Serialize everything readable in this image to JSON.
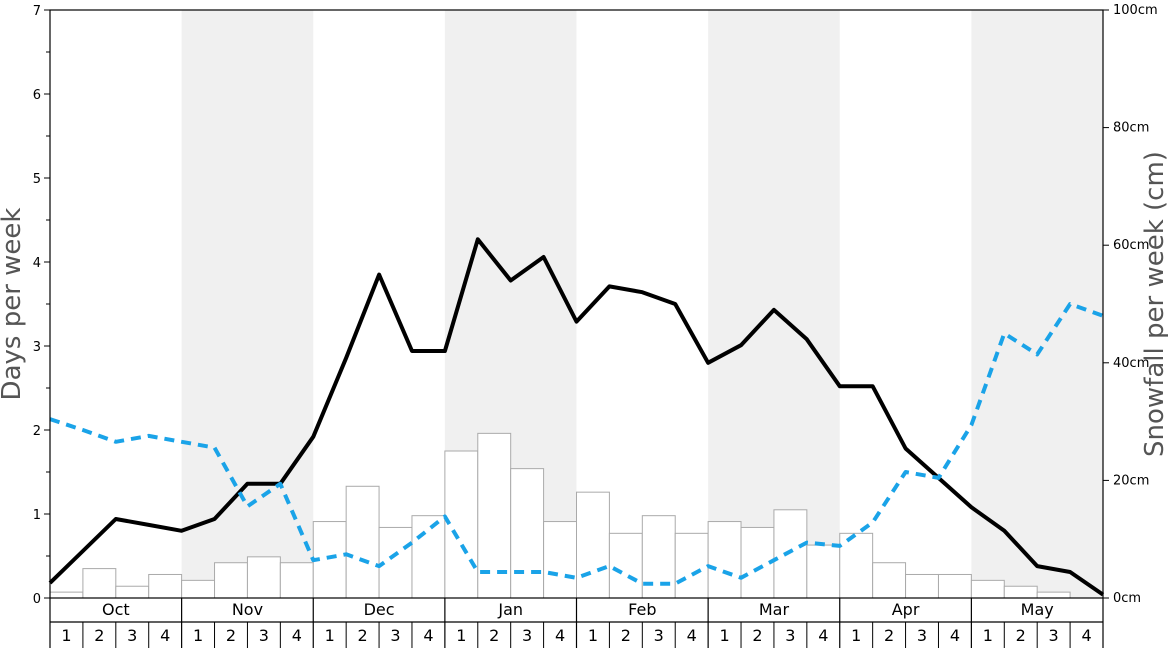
{
  "chart_data": {
    "type": "bar+line",
    "title": "",
    "ylabel_left": "Days per week",
    "ylabel_right": "Snowfall per week (cm)",
    "ylim_left": [
      0,
      7
    ],
    "ylim_right": [
      0,
      100
    ],
    "left_ticks": [
      "0",
      "1",
      "2",
      "3",
      "4",
      "5",
      "6",
      "7"
    ],
    "right_ticks": [
      "0cm",
      "20cm",
      "40cm",
      "60cm",
      "80cm",
      "100cm"
    ],
    "months": [
      "Oct",
      "Nov",
      "Dec",
      "Jan",
      "Feb",
      "Mar",
      "Apr",
      "May"
    ],
    "weeks": [
      "1",
      "2",
      "3",
      "4"
    ],
    "shaded_months": [
      1,
      3,
      5,
      7
    ],
    "colors": {
      "bars_fill": "#ffffff",
      "bars_stroke": "#aaaaaa",
      "days_line": "#000000",
      "dashed_line": "#1aa3e8",
      "shade": "#f0f0f0",
      "axis_title": "#555555"
    },
    "series": [
      {
        "kind": "bar",
        "axis": "right",
        "values": [
          1,
          5,
          2,
          4,
          3,
          6,
          7,
          6,
          13,
          19,
          12,
          14,
          25,
          28,
          22,
          13,
          18,
          11,
          14,
          11,
          13,
          12,
          15,
          9,
          11,
          6,
          4,
          4,
          3,
          2,
          1,
          0
        ]
      },
      {
        "kind": "line",
        "axis": "left",
        "style": "solid",
        "values": [
          0.18,
          0.56,
          0.94,
          0.87,
          0.8,
          0.94,
          1.36,
          1.36,
          1.92,
          2.86,
          3.85,
          2.94,
          2.94,
          4.27,
          3.78,
          4.06,
          3.29,
          3.71,
          3.64,
          3.5,
          2.8,
          3.01,
          3.43,
          3.08,
          2.52,
          2.52,
          1.78,
          1.43,
          1.08,
          0.8,
          0.38,
          0.31,
          0.04
        ]
      },
      {
        "kind": "line",
        "axis": "left",
        "style": "dashed",
        "values": [
          2.13,
          2.0,
          1.86,
          1.93,
          1.86,
          1.79,
          1.09,
          1.36,
          0.45,
          0.52,
          0.38,
          0.66,
          0.97,
          0.31,
          0.31,
          0.31,
          0.24,
          0.38,
          0.17,
          0.17,
          0.38,
          0.24,
          0.45,
          0.66,
          0.62,
          0.9,
          1.5,
          1.43,
          2.06,
          3.15,
          2.9,
          3.5,
          3.36
        ]
      }
    ]
  }
}
